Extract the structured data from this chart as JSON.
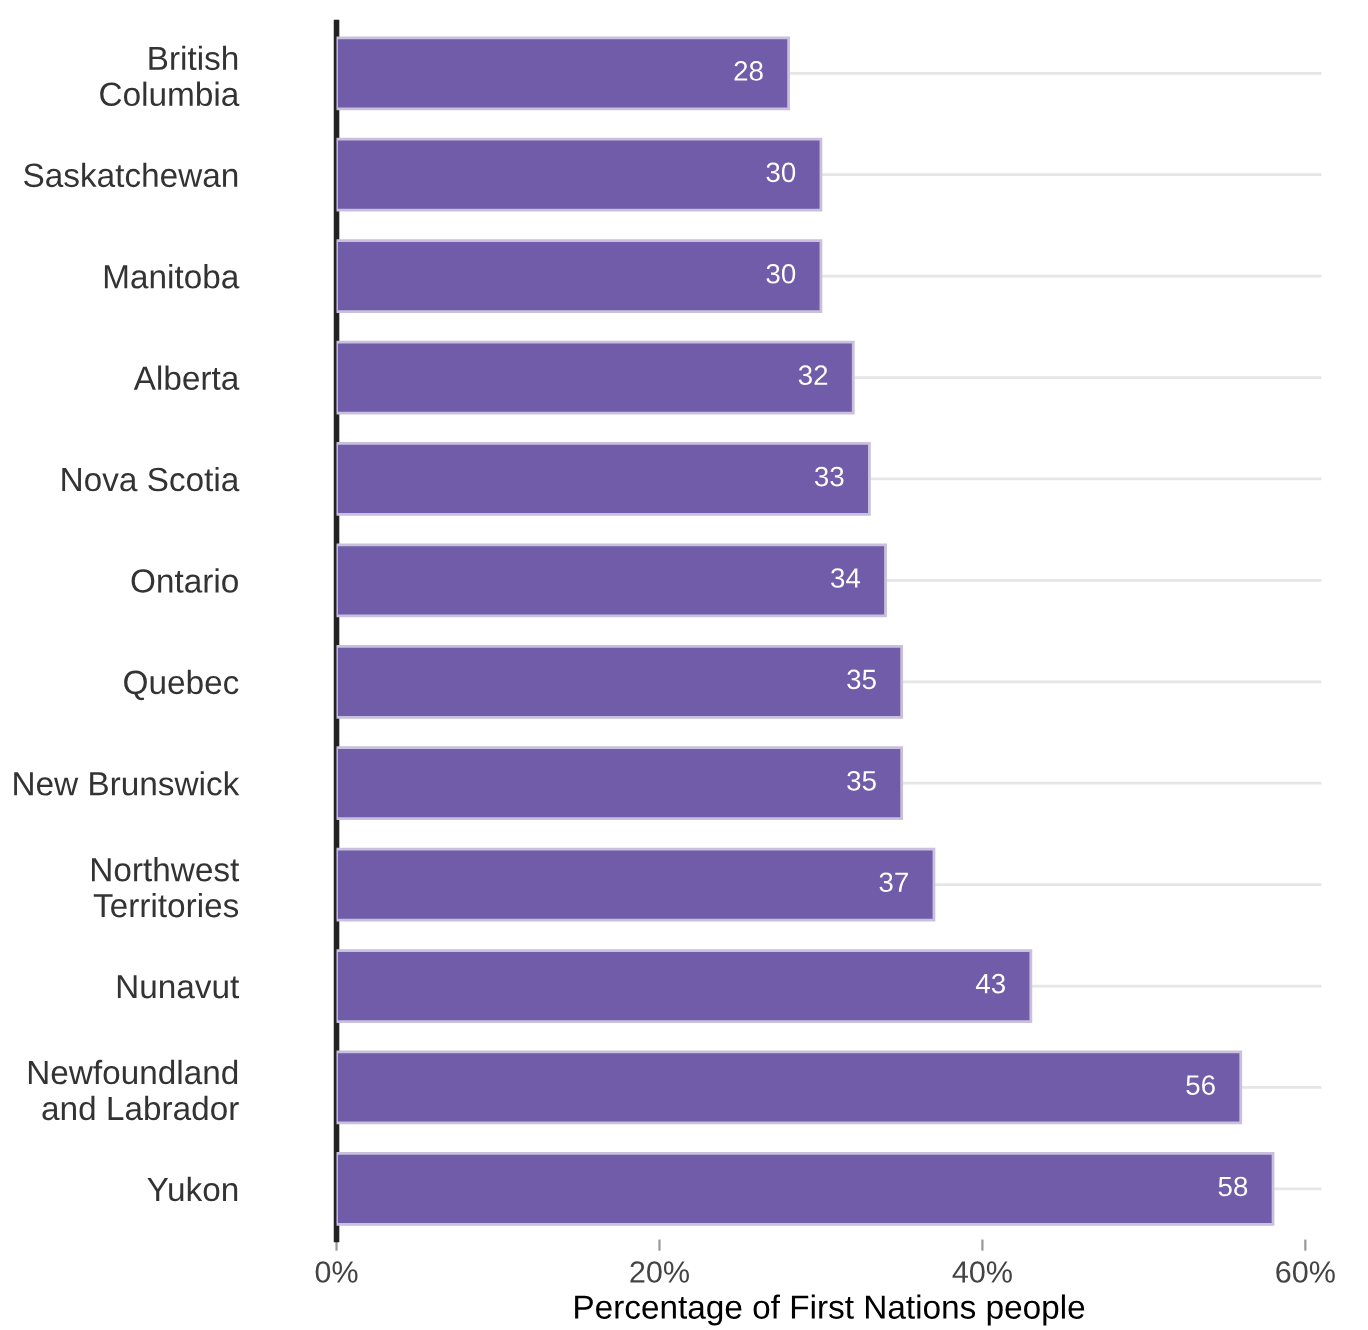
{
  "chart_data": {
    "type": "bar",
    "orientation": "horizontal",
    "categories": [
      "British\nColumbia",
      "Saskatchewan",
      "Manitoba",
      "Alberta",
      "Nova Scotia",
      "Ontario",
      "Quebec",
      "New Brunswick",
      "Northwest\nTerritories",
      "Nunavut",
      "Newfoundland\nand Labrador",
      "Yukon"
    ],
    "values": [
      28,
      30,
      30,
      32,
      33,
      34,
      35,
      35,
      37,
      43,
      56,
      58
    ],
    "color": "#705ca8",
    "xlabel": "Percentage of First Nations people",
    "xlim": [
      0,
      61
    ],
    "xticks": [
      {
        "value": 0,
        "label": "0%"
      },
      {
        "value": 20,
        "label": "20%"
      },
      {
        "value": 40,
        "label": "40%"
      },
      {
        "value": 60,
        "label": "60%"
      }
    ],
    "grid": "y",
    "data_labels": true
  }
}
